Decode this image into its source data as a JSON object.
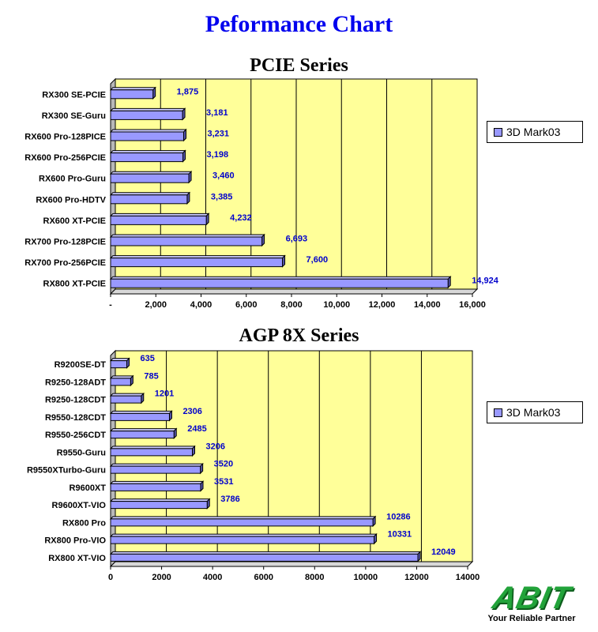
{
  "page": {
    "title": "Peformance Chart"
  },
  "logo": {
    "brand": "ABIT",
    "tagline": "Your Reliable Partner"
  },
  "colors": {
    "bar": "#9999ff",
    "plot_bg": "#ffff99",
    "value_label": "#0000cc",
    "title": "#0000ee"
  },
  "chart_data": [
    {
      "type": "bar",
      "orientation": "horizontal",
      "title": "PCIE Series",
      "categories": [
        "RX300 SE-PCIE",
        "RX300 SE-Guru",
        "RX600 Pro-128PICE",
        "RX600 Pro-256PCIE",
        "RX600 Pro-Guru",
        "RX600 Pro-HDTV",
        "RX600 XT-PCIE",
        "RX700 Pro-128PCIE",
        "RX700 Pro-256PCIE",
        "RX800 XT-PCIE"
      ],
      "series": [
        {
          "name": "3D Mark03",
          "values": [
            1875,
            3181,
            3231,
            3198,
            3460,
            3385,
            4232,
            6693,
            7600,
            14924
          ]
        }
      ],
      "value_labels": [
        "1,875",
        "3,181",
        "3,231",
        "3,198",
        "3,460",
        "3,385",
        "4,232",
        "6,693",
        "7,600",
        "14,924"
      ],
      "xlim": [
        0,
        16000
      ],
      "xticks": [
        "-",
        "2,000",
        "4,000",
        "6,000",
        "8,000",
        "10,000",
        "12,000",
        "14,000",
        "16,000"
      ],
      "grid": true,
      "legend": "right"
    },
    {
      "type": "bar",
      "orientation": "horizontal",
      "title": "AGP 8X Series",
      "categories": [
        "R9200SE-DT",
        "R9250-128ADT",
        "R9250-128CDT",
        "R9550-128CDT",
        "R9550-256CDT",
        "R9550-Guru",
        "R9550XTurbo-Guru",
        "R9600XT",
        "R9600XT-VIO",
        "RX800 Pro",
        "RX800 Pro-VIO",
        "RX800 XT-VIO"
      ],
      "series": [
        {
          "name": "3D Mark03",
          "values": [
            635,
            785,
            1201,
            2306,
            2485,
            3206,
            3520,
            3531,
            3786,
            10286,
            10331,
            12049
          ]
        }
      ],
      "value_labels": [
        "635",
        "785",
        "1201",
        "2306",
        "2485",
        "3206",
        "3520",
        "3531",
        "3786",
        "10286",
        "10331",
        "12049"
      ],
      "xlim": [
        0,
        14000
      ],
      "xticks": [
        "0",
        "2000",
        "4000",
        "6000",
        "8000",
        "10000",
        "12000",
        "14000"
      ],
      "grid": true,
      "legend": "right"
    }
  ]
}
